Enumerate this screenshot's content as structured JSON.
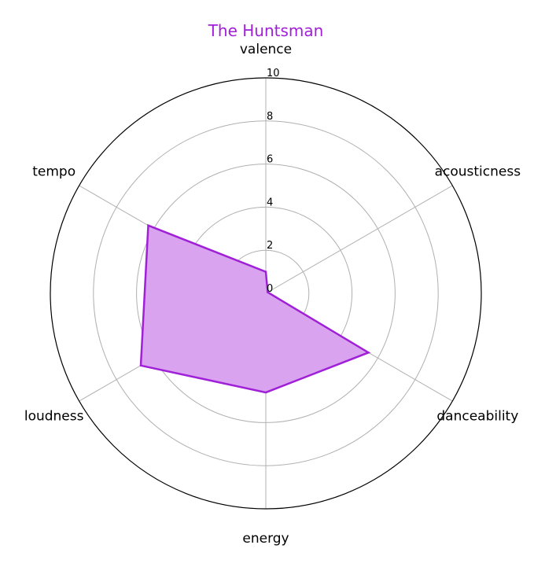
{
  "chart_data": {
    "type": "radar",
    "title": "The Huntsman",
    "categories": [
      "valence",
      "acousticness",
      "danceability",
      "energy",
      "loudness",
      "tempo"
    ],
    "series": [
      {
        "name": "The Huntsman",
        "values": [
          1.0,
          0.1,
          5.5,
          4.6,
          6.7,
          6.3
        ]
      }
    ],
    "rlim": [
      0,
      10
    ],
    "rticks": [
      0,
      2,
      4,
      6,
      8,
      10
    ],
    "rtick_labels": [
      "0",
      "2",
      "4",
      "6",
      "8",
      "10"
    ],
    "grid": true,
    "colors": {
      "series": "#a020d8",
      "fill": "#d9a3ef",
      "title": "#a020d8",
      "grid": "#b0b0b0",
      "frame": "#000000"
    }
  }
}
